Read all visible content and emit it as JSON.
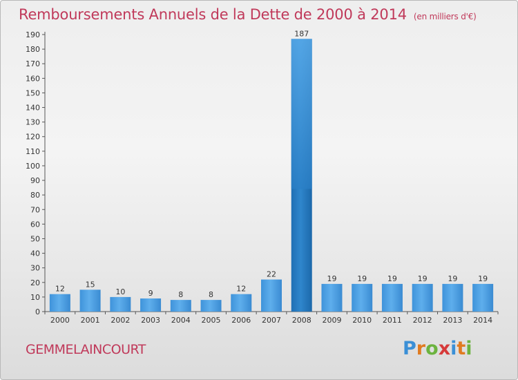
{
  "header": {
    "title": "Remboursements Annuels de la Dette de 2000 à 2014",
    "unit": "(en milliers d'€)"
  },
  "footer": {
    "commune": "GEMMELAINCOURT",
    "logo_letters": [
      "P",
      "r",
      "o",
      "x",
      "i",
      "t",
      "i"
    ],
    "logo_colors": [
      "#3a8fd6",
      "#e07b20",
      "#6cb33f",
      "#d63a3a",
      "#3a8fd6",
      "#e07b20",
      "#6cb33f"
    ]
  },
  "colors": {
    "title": "#c0395a",
    "bar_light": "#62b0ec",
    "bar_dark": "#2a7fc6"
  },
  "chart_data": {
    "type": "bar",
    "title": "Remboursements Annuels de la Dette de 2000 à 2014",
    "subtitle": "(en milliers d'€)",
    "xlabel": "",
    "ylabel": "",
    "categories": [
      "2000",
      "2001",
      "2002",
      "2003",
      "2004",
      "2005",
      "2006",
      "2007",
      "2008",
      "2009",
      "2010",
      "2011",
      "2012",
      "2013",
      "2014"
    ],
    "values": [
      12,
      15,
      10,
      9,
      8,
      8,
      12,
      22,
      187,
      19,
      19,
      19,
      19,
      19,
      19
    ],
    "highlight_index": 8,
    "ylim": [
      0,
      190
    ],
    "yticks": [
      0,
      10,
      20,
      30,
      40,
      50,
      60,
      70,
      80,
      90,
      100,
      110,
      120,
      130,
      140,
      150,
      160,
      170,
      180,
      190
    ],
    "grid": false,
    "legend": "none"
  }
}
